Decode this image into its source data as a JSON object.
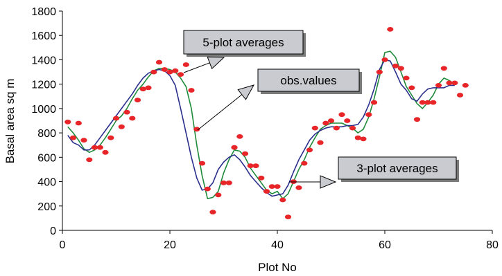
{
  "chart_data": {
    "type": "scatter",
    "xlabel": "Plot No",
    "ylabel": "Basal area sq m",
    "xlim": [
      0,
      80
    ],
    "ylim": [
      0,
      1800
    ],
    "xticks": [
      0,
      20,
      40,
      60,
      80
    ],
    "yticks": [
      0,
      200,
      400,
      600,
      800,
      1000,
      1200,
      1400,
      1600,
      1800
    ],
    "grid": false,
    "points_color": "#e8262a",
    "series": [
      {
        "kind": "points",
        "color": "#e8262a",
        "x": [
          1,
          2,
          3,
          4,
          5,
          6,
          7,
          8,
          9,
          10,
          11,
          12,
          13,
          14,
          15,
          16,
          17,
          18,
          19,
          20,
          21,
          22,
          23,
          24,
          25,
          26,
          27,
          28,
          29,
          30,
          31,
          32,
          33,
          34,
          35,
          36,
          37,
          38,
          39,
          40,
          41,
          42,
          43,
          44,
          45,
          46,
          47,
          48,
          49,
          50,
          51,
          52,
          53,
          54,
          55,
          56,
          57,
          58,
          59,
          60,
          61,
          62,
          63,
          64,
          65,
          66,
          67,
          68,
          69,
          70,
          71,
          72,
          73,
          74,
          75
        ],
        "y": [
          890,
          760,
          880,
          740,
          580,
          680,
          680,
          640,
          760,
          920,
          850,
          970,
          920,
          1070,
          1160,
          1170,
          1300,
          1380,
          1320,
          1300,
          1310,
          1280,
          1360,
          1150,
          830,
          550,
          340,
          150,
          290,
          390,
          390,
          680,
          770,
          630,
          530,
          530,
          430,
          320,
          360,
          360,
          250,
          110,
          400,
          350,
          550,
          660,
          840,
          720,
          880,
          900,
          840,
          950,
          900,
          840,
          760,
          750,
          950,
          1050,
          1300,
          1400,
          1650,
          1350,
          1330,
          1250,
          1170,
          910,
          1050,
          1050,
          1050,
          1190,
          1330,
          1210,
          1210,
          1110,
          1190
        ]
      },
      {
        "kind": "line",
        "color": "#1f8a3a",
        "x": [
          1,
          2,
          3,
          4,
          5,
          6,
          7,
          8,
          9,
          10,
          11,
          12,
          13,
          14,
          15,
          16,
          17,
          18,
          19,
          20,
          21,
          22,
          23,
          24,
          25,
          26,
          27,
          28,
          29,
          30,
          31,
          32,
          33,
          34,
          35,
          36,
          37,
          38,
          39,
          40,
          41,
          42,
          43,
          44,
          45,
          46,
          47,
          48,
          49,
          50,
          51,
          52,
          53,
          54,
          55,
          56,
          57,
          58,
          59,
          60,
          61,
          62,
          63,
          64,
          65,
          66,
          67,
          68,
          69,
          70,
          71,
          72,
          73
        ],
        "y": [
          850,
          800,
          740,
          670,
          640,
          660,
          700,
          760,
          830,
          900,
          940,
          1000,
          1080,
          1150,
          1200,
          1260,
          1310,
          1330,
          1330,
          1320,
          1300,
          1250,
          1180,
          1000,
          700,
          450,
          260,
          270,
          320,
          470,
          580,
          660,
          650,
          600,
          510,
          450,
          390,
          330,
          300,
          320,
          260,
          300,
          400,
          500,
          580,
          680,
          760,
          830,
          860,
          880,
          880,
          880,
          860,
          840,
          800,
          830,
          930,
          1080,
          1260,
          1460,
          1470,
          1420,
          1300,
          1180,
          1110,
          1040,
          1000,
          1050,
          1110,
          1200,
          1250,
          1230,
          1200
        ]
      },
      {
        "kind": "line",
        "color": "#2a2f8c",
        "x": [
          1,
          2,
          3,
          4,
          5,
          6,
          7,
          8,
          9,
          10,
          11,
          12,
          13,
          14,
          15,
          16,
          17,
          18,
          19,
          20,
          21,
          22,
          23,
          24,
          25,
          26,
          27,
          28,
          29,
          30,
          31,
          32,
          33,
          34,
          35,
          36,
          37,
          38,
          39,
          40,
          41,
          42,
          43,
          44,
          45,
          46,
          47,
          48,
          49,
          50,
          51,
          52,
          53,
          54,
          55,
          56,
          57,
          58,
          59,
          60,
          61,
          62,
          63,
          64,
          65,
          66,
          67,
          68,
          69,
          70,
          71,
          72,
          73
        ],
        "y": [
          780,
          720,
          700,
          660,
          660,
          700,
          760,
          820,
          880,
          940,
          1000,
          1060,
          1120,
          1190,
          1250,
          1290,
          1310,
          1320,
          1310,
          1270,
          1190,
          1000,
          800,
          600,
          430,
          330,
          340,
          390,
          500,
          560,
          600,
          620,
          580,
          520,
          450,
          400,
          350,
          310,
          280,
          290,
          300,
          370,
          480,
          580,
          660,
          740,
          790,
          820,
          840,
          850,
          850,
          850,
          860,
          860,
          870,
          930,
          1030,
          1160,
          1320,
          1400,
          1390,
          1300,
          1200,
          1150,
          1080,
          1060,
          1120,
          1160,
          1170,
          1170,
          1170,
          1190,
          1190
        ]
      }
    ],
    "annotations": [
      {
        "text": "5-plot averages",
        "arrow_target_series": "#2a2f8c"
      },
      {
        "text": "obs.values",
        "arrow_target_series": "#e8262a"
      },
      {
        "text": "3-plot averages",
        "arrow_target_series": "#1f8a3a"
      }
    ]
  }
}
